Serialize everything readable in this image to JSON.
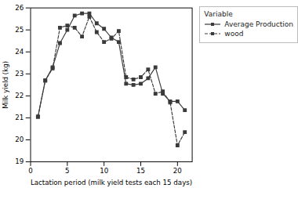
{
  "chart_data": {
    "type": "line",
    "x": [
      1,
      2,
      3,
      4,
      5,
      6,
      7,
      8,
      9,
      10,
      11,
      12,
      13,
      14,
      15,
      16,
      17,
      18,
      19,
      20,
      21
    ],
    "series": [
      {
        "name": "Average Production",
        "color": "#3a3a3a",
        "line_style": "solid",
        "marker": "square",
        "values": [
          21.05,
          22.7,
          23.3,
          24.4,
          25.0,
          25.65,
          25.75,
          25.75,
          25.3,
          25.05,
          24.65,
          24.45,
          22.55,
          22.5,
          22.55,
          22.8,
          23.3,
          22.1,
          21.75,
          21.75,
          21.35
        ]
      },
      {
        "name": "wood",
        "color": "#3a3a3a",
        "line_style": "dashed",
        "marker": "square",
        "values": [
          21.05,
          22.7,
          23.25,
          25.1,
          25.2,
          25.1,
          24.7,
          25.6,
          24.9,
          24.45,
          24.6,
          24.95,
          22.85,
          22.75,
          22.85,
          23.2,
          22.1,
          22.2,
          21.7,
          19.75,
          20.35
        ]
      }
    ],
    "xlabel": "Lactation period (milk yield tests each 15 days)",
    "ylabel": "Milk yield (kg)",
    "xlim": [
      0,
      22
    ],
    "ylim": [
      19,
      26
    ],
    "xticks": [
      0,
      5,
      10,
      15,
      20
    ],
    "yticks": [
      19,
      20,
      21,
      22,
      23,
      24,
      25,
      26
    ],
    "legend_title": "Variable",
    "legend": "right",
    "grid": false
  }
}
